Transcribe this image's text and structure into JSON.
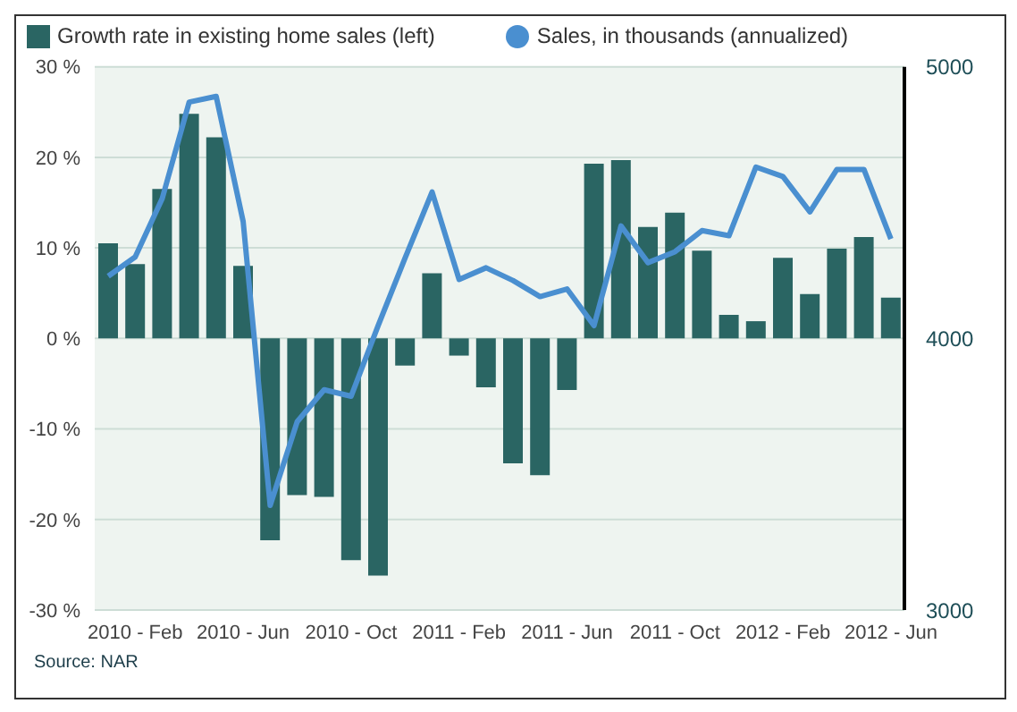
{
  "chart_data": {
    "type": "bar",
    "categories": [
      null,
      "2010 - Feb",
      null,
      null,
      null,
      "2010 - Jun",
      null,
      null,
      null,
      "2010 - Oct",
      null,
      null,
      null,
      "2011 - Feb",
      null,
      null,
      null,
      "2011 - Jun",
      null,
      null,
      null,
      "2011 - Oct",
      null,
      null,
      null,
      "2012 - Feb",
      null,
      null,
      null,
      "2012 - Jun"
    ],
    "series": [
      {
        "name": "Growth rate in existing home sales (left)",
        "color": "#2a6563",
        "values": [
          10.5,
          8.2,
          16.5,
          24.8,
          22.2,
          8,
          -22.3,
          -17.3,
          -17.5,
          -24.5,
          -26.2,
          -3,
          7.2,
          -1.9,
          -5.4,
          -13.8,
          -15.1,
          -5.7,
          19.3,
          19.7,
          12.3,
          13.9,
          9.7,
          2.6,
          1.9,
          8.9,
          4.9,
          9.9,
          11.2,
          4.5
        ]
      },
      {
        "name": "Sales, in thousands (annualized)",
        "type": "line",
        "axis": "y2",
        "color": "#4a8fd0",
        "values": [
          4229,
          4300,
          4515,
          4870,
          4891,
          4430,
          3385,
          3693,
          3811,
          3787,
          4047,
          4296,
          4539,
          4217,
          4260,
          4213,
          4154,
          4182,
          4047,
          4414,
          4279,
          4319,
          4397,
          4378,
          4631,
          4596,
          4466,
          4622,
          4622,
          4366
        ]
      }
    ],
    "ylim": [
      -30,
      30
    ],
    "yticks": [
      {
        "value": -30,
        "label": "-30 %"
      },
      {
        "value": -20,
        "label": "-20 %"
      },
      {
        "value": -10,
        "label": "-10 %"
      },
      {
        "value": 0,
        "label": "0 %"
      },
      {
        "value": 10,
        "label": "10 %"
      },
      {
        "value": 20,
        "label": "20 %"
      },
      {
        "value": 30,
        "label": "30 %"
      }
    ],
    "y2lim": [
      3000,
      5000
    ],
    "y2ticks": [
      3000,
      4000,
      5000
    ],
    "grid": "y",
    "legend": "top left",
    "marker": "none",
    "line_style": "solid",
    "annotations": [
      "Source: NAR"
    ]
  }
}
